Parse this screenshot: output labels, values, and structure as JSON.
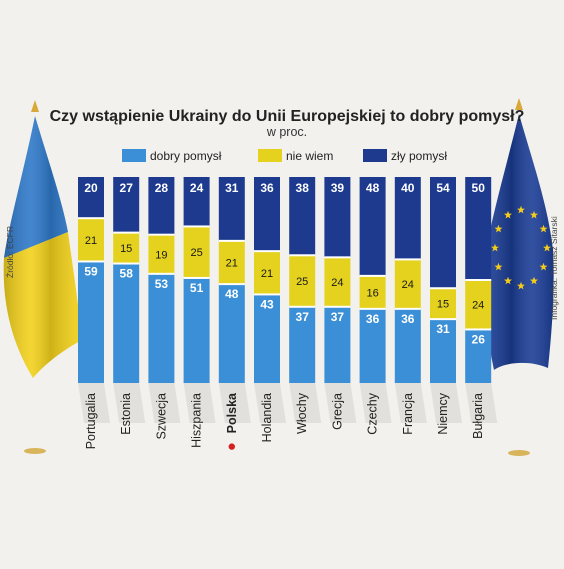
{
  "title": "Czy wstąpienie Ukrainy do Unii Europejskiej to dobry pomysł?",
  "subtitle": "w proc.",
  "source": "Źródło: ECFR",
  "credit": "Infografika: Tomasz Sitarski",
  "colors": {
    "good": "#3a8fd6",
    "unknown": "#e4d21e",
    "bad": "#1d3a8f",
    "ukraine_blue": "#2f79c9",
    "ukraine_yellow": "#f2d11c",
    "eu_blue": "#1b3d96",
    "eu_star": "#f5cc1a",
    "highlight_dot": "#d42020"
  },
  "chart_data": {
    "type": "bar",
    "stacked": true,
    "orientation": "vertical",
    "categories": [
      "Portugalia",
      "Estonia",
      "Szwecja",
      "Hiszpania",
      "Polska",
      "Holandia",
      "Włochy",
      "Grecja",
      "Czechy",
      "Francja",
      "Niemcy",
      "Bułgaria"
    ],
    "highlighted_category": "Polska",
    "series": [
      {
        "name": "dobry pomysł",
        "values": [
          59,
          58,
          53,
          51,
          48,
          43,
          37,
          37,
          36,
          36,
          31,
          26
        ]
      },
      {
        "name": "nie wiem",
        "values": [
          21,
          15,
          19,
          25,
          21,
          21,
          25,
          24,
          16,
          24,
          15,
          24
        ]
      },
      {
        "name": "zły pomysł",
        "values": [
          20,
          27,
          28,
          24,
          31,
          36,
          38,
          39,
          48,
          40,
          54,
          50
        ]
      }
    ],
    "ylim": [
      0,
      100
    ],
    "legend_position": "top",
    "grid": false
  }
}
